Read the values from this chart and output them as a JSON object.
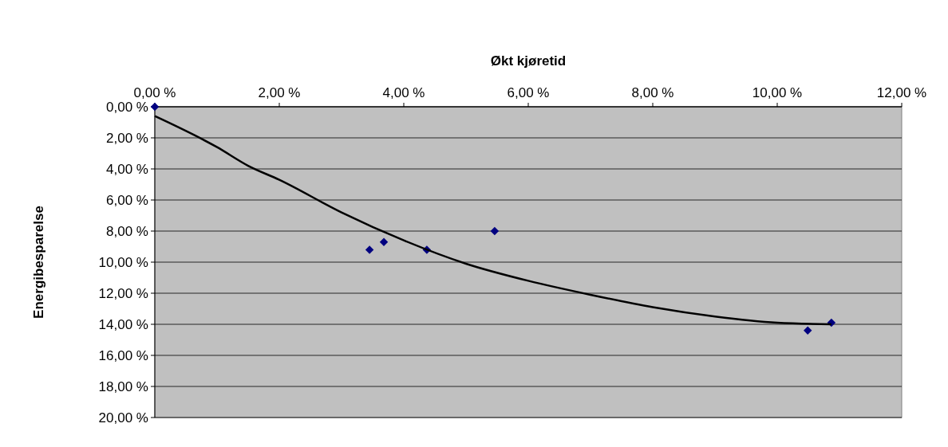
{
  "chart_data": {
    "type": "scatter",
    "xlabel": "Økt kjøretid",
    "ylabel": "Energibesparelse",
    "xlim": [
      0,
      12
    ],
    "ylim": [
      20,
      0
    ],
    "xticks": [
      {
        "value": 0,
        "label": "0,00 %"
      },
      {
        "value": 2,
        "label": "2,00 %"
      },
      {
        "value": 4,
        "label": "4,00 %"
      },
      {
        "value": 6,
        "label": "6,00 %"
      },
      {
        "value": 8,
        "label": "8,00 %"
      },
      {
        "value": 10,
        "label": "10,00 %"
      },
      {
        "value": 12,
        "label": "12,00 %"
      }
    ],
    "yticks": [
      {
        "value": 0,
        "label": "0,00 %"
      },
      {
        "value": 2,
        "label": "2,00 %"
      },
      {
        "value": 4,
        "label": "4,00 %"
      },
      {
        "value": 6,
        "label": "6,00 %"
      },
      {
        "value": 8,
        "label": "8,00 %"
      },
      {
        "value": 10,
        "label": "10,00 %"
      },
      {
        "value": 12,
        "label": "12,00 %"
      },
      {
        "value": 14,
        "label": "14,00 %"
      },
      {
        "value": 16,
        "label": "16,00 %"
      },
      {
        "value": 18,
        "label": "18,00 %"
      },
      {
        "value": 20,
        "label": "20,00 %"
      }
    ],
    "grid": "y",
    "series": [
      {
        "marker": "diamond",
        "color": "#000080",
        "x": [
          0,
          3.45,
          3.68,
          4.37,
          5.46,
          10.49,
          10.87
        ],
        "values": [
          0,
          9.2,
          8.7,
          9.2,
          8.0,
          14.4,
          13.9
        ]
      },
      {
        "type": "line",
        "marker": "none",
        "color": "#000000",
        "x": [
          0,
          1,
          1.5,
          2,
          3,
          4,
          5,
          6,
          7,
          8,
          9,
          10,
          10.87
        ],
        "values": [
          0.6,
          2.6,
          3.8,
          4.7,
          6.8,
          8.6,
          10.1,
          11.2,
          12.1,
          12.9,
          13.5,
          13.9,
          14.0
        ]
      }
    ]
  }
}
